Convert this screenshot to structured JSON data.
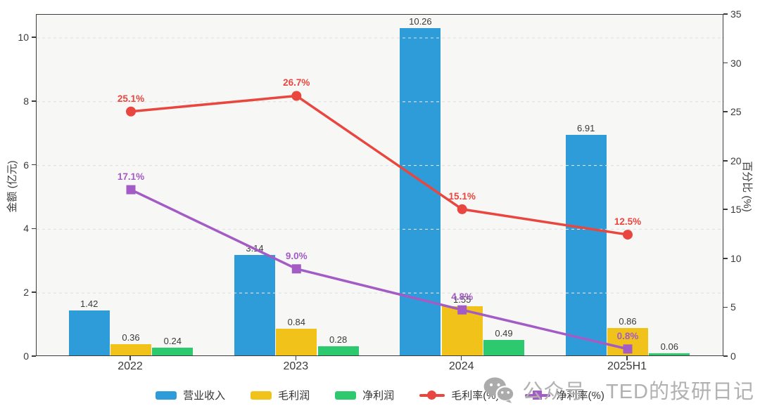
{
  "watermark": {
    "text": "公众号 · TED的投研日记",
    "icon": "wechat-icon",
    "color": "#b1b1b1"
  },
  "chart_data": {
    "type": "bar+line",
    "categories": [
      "2022",
      "2023",
      "2024",
      "2025H1"
    ],
    "bar_series": [
      {
        "key": "revenue",
        "name": "营业收入",
        "color": "#2E9CD9",
        "values": [
          1.42,
          3.14,
          10.26,
          6.91
        ]
      },
      {
        "key": "gross-profit",
        "name": "毛利润",
        "color": "#F0C21A",
        "values": [
          0.36,
          0.84,
          1.55,
          0.86
        ]
      },
      {
        "key": "net-profit",
        "name": "净利润",
        "color": "#2DC96E",
        "values": [
          0.24,
          0.28,
          0.49,
          0.06
        ]
      }
    ],
    "line_series": [
      {
        "key": "gross-margin",
        "name": "毛利率(%)",
        "color": "#E8463E",
        "marker": "circle",
        "values": [
          25.1,
          26.7,
          15.1,
          12.5
        ]
      },
      {
        "key": "net-margin",
        "name": "净利率(%)",
        "color": "#A35CC5",
        "marker": "square",
        "values": [
          17.1,
          9.0,
          4.8,
          0.8
        ]
      }
    ],
    "left_axis": {
      "label": "金额 (亿元)",
      "ticks": [
        0,
        2,
        4,
        6,
        8,
        10
      ],
      "lim": [
        0,
        10.73
      ]
    },
    "right_axis": {
      "label": "百分比 (%)",
      "ticks": [
        0,
        5,
        10,
        15,
        20,
        25,
        30,
        35
      ],
      "lim": [
        0,
        35
      ]
    },
    "grid": true,
    "legend_position": "bottom",
    "bar_label_color": "#3a3a3a",
    "plot_bg": "#f7f7f6",
    "grid_color": "#e2e2e2"
  }
}
